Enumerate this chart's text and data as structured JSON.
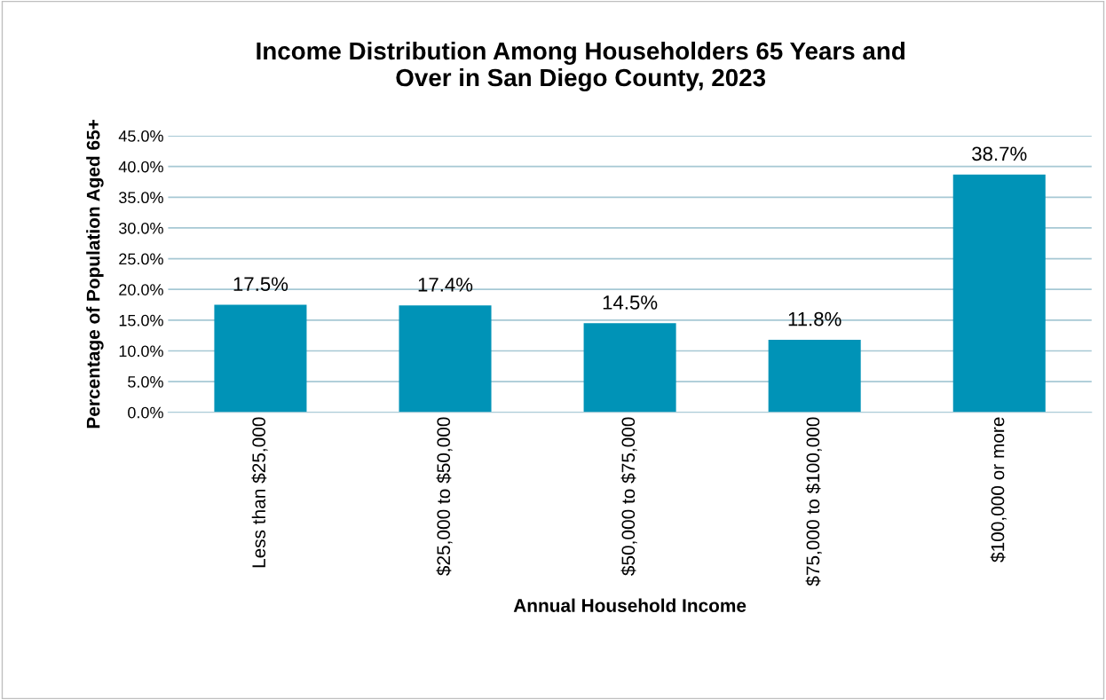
{
  "chart_data": {
    "type": "bar",
    "title": "Income Distribution Among Householders 65 Years and\nOver in San Diego County, 2023",
    "xlabel": "Annual Household Income",
    "ylabel": "Percentage of Population Aged 65+",
    "categories": [
      "Less than $25,000",
      "$25,000 to $50,000",
      "$50,000 to $75,000",
      "$75,000 to $100,000",
      "$100,000 or more"
    ],
    "values": [
      17.5,
      17.4,
      14.5,
      11.8,
      38.7
    ],
    "value_labels": [
      "17.5%",
      "17.4%",
      "14.5%",
      "11.8%",
      "38.7%"
    ],
    "color": "#0093b7",
    "ylim": [
      0,
      45
    ],
    "yticks": [
      {
        "value": 0,
        "label": "0.0%"
      },
      {
        "value": 5,
        "label": "5.0%"
      },
      {
        "value": 10,
        "label": "10.0%"
      },
      {
        "value": 15,
        "label": "15.0%"
      },
      {
        "value": 20,
        "label": "20.0%"
      },
      {
        "value": 25,
        "label": "25.0%"
      },
      {
        "value": 30,
        "label": "30.0%"
      },
      {
        "value": 35,
        "label": "35.0%"
      },
      {
        "value": 40,
        "label": "40.0%"
      },
      {
        "value": 45,
        "label": "45.0%"
      }
    ],
    "grid": "y",
    "legend": false
  }
}
